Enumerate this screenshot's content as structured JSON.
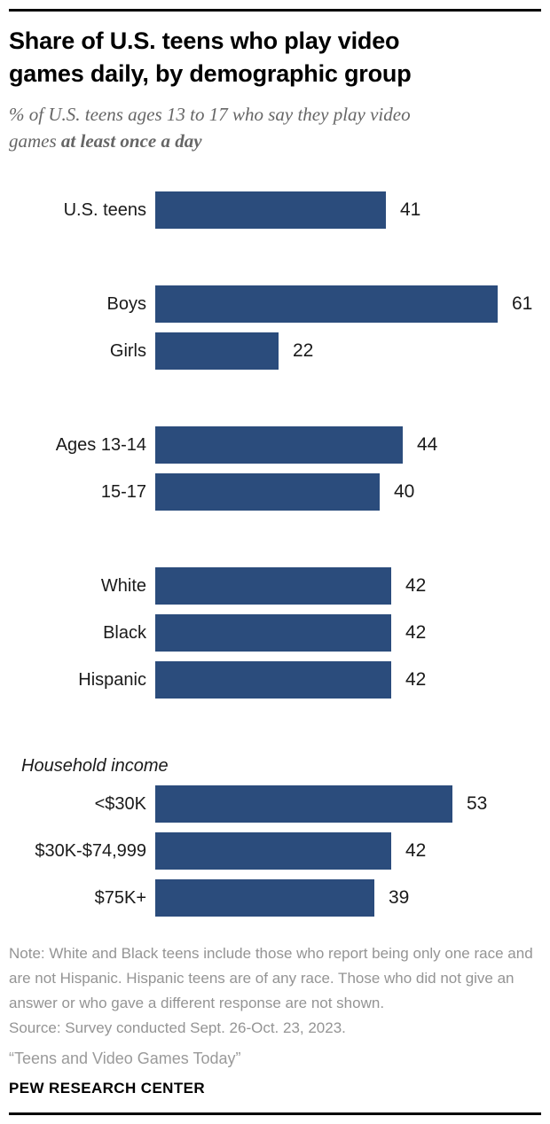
{
  "header": {
    "title_lines": [
      "Share of U.S. teens who play video",
      "games daily, by demographic group"
    ],
    "subtitle_line1": "% of U.S. teens ages 13 to 17 who say they play video",
    "subtitle_line2_regular": "games ",
    "subtitle_line2_bold": "at least once a day"
  },
  "chart_data": {
    "type": "bar",
    "orientation": "horizontal",
    "unit": "% of U.S. teens",
    "bar_color": "#2B4C7C",
    "value_label_color": "#1a1a1a",
    "xlim": [
      0,
      68
    ],
    "grid": false,
    "legend": false,
    "groups": [
      {
        "heading": null,
        "rows": [
          {
            "label": "U.S. teens",
            "value": 41
          }
        ]
      },
      {
        "heading": null,
        "rows": [
          {
            "label": "Boys",
            "value": 61
          },
          {
            "label": "Girls",
            "value": 22
          }
        ]
      },
      {
        "heading": null,
        "rows": [
          {
            "label": "Ages 13-14",
            "value": 44
          },
          {
            "label": "15-17",
            "value": 40
          }
        ]
      },
      {
        "heading": null,
        "rows": [
          {
            "label": "White",
            "value": 42
          },
          {
            "label": "Black",
            "value": 42
          },
          {
            "label": "Hispanic",
            "value": 42
          }
        ]
      },
      {
        "heading": "Household income",
        "rows": [
          {
            "label": "<$30K",
            "value": 53
          },
          {
            "label": "$30K-$74,999",
            "value": 42
          },
          {
            "label": "$75K+",
            "value": 39
          }
        ]
      }
    ]
  },
  "footer": {
    "note": "Note: White and Black teens include those who report being only one race and are not Hispanic. Hispanic teens are of any race. Those who did not give an answer or who gave a different response are not shown.",
    "source": "Source: Survey conducted Sept. 26-Oct. 23, 2023.",
    "report_title": "“Teens and Video Games Today”",
    "brand": "PEW RESEARCH CENTER"
  }
}
